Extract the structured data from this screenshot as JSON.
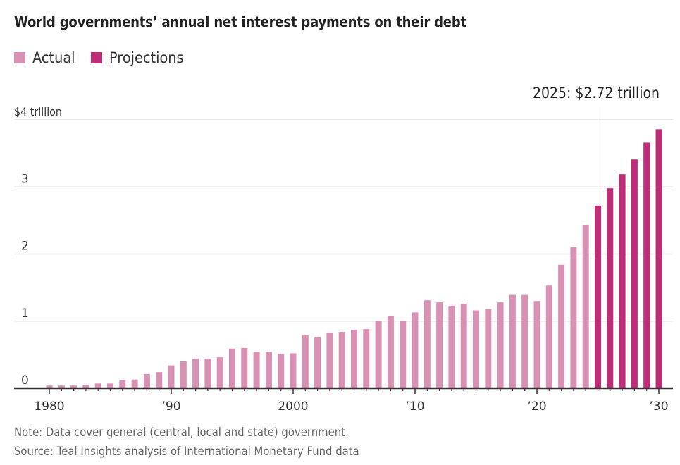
{
  "chart_data": {
    "type": "bar",
    "title": "World governments’ annual net interest payments on their debt",
    "xlabel": "",
    "ylabel": "",
    "ylim": [
      0,
      4
    ],
    "xlim": [
      1980,
      2030
    ],
    "grid": true,
    "legend_position": "top-left",
    "legend": [
      {
        "name": "Actual",
        "color": "#d991b3"
      },
      {
        "name": "Projections",
        "color": "#bf2c78"
      }
    ],
    "y_ticks": [
      {
        "value": 0,
        "label": "0"
      },
      {
        "value": 1,
        "label": "1"
      },
      {
        "value": 2,
        "label": "2"
      },
      {
        "value": 3,
        "label": "3"
      },
      {
        "value": 4,
        "label": "$4 trillion"
      }
    ],
    "x_ticks": [
      {
        "value": 1980,
        "label": "1980"
      },
      {
        "value": 1990,
        "label": "’90"
      },
      {
        "value": 2000,
        "label": "2000"
      },
      {
        "value": 2010,
        "label": "’10"
      },
      {
        "value": 2020,
        "label": "’20"
      },
      {
        "value": 2030,
        "label": "’30"
      }
    ],
    "series": [
      {
        "name": "Actual",
        "color": "#d991b3",
        "x": [
          1980,
          1981,
          1982,
          1983,
          1984,
          1985,
          1986,
          1987,
          1988,
          1989,
          1990,
          1991,
          1992,
          1993,
          1994,
          1995,
          1996,
          1997,
          1998,
          1999,
          2000,
          2001,
          2002,
          2003,
          2004,
          2005,
          2006,
          2007,
          2008,
          2009,
          2010,
          2011,
          2012,
          2013,
          2014,
          2015,
          2016,
          2017,
          2018,
          2019,
          2020,
          2021,
          2022,
          2023,
          2024
        ],
        "values": [
          0.04,
          0.04,
          0.04,
          0.05,
          0.07,
          0.07,
          0.12,
          0.13,
          0.21,
          0.24,
          0.34,
          0.4,
          0.44,
          0.44,
          0.46,
          0.59,
          0.6,
          0.54,
          0.54,
          0.51,
          0.52,
          0.79,
          0.76,
          0.83,
          0.84,
          0.87,
          0.88,
          1.0,
          1.08,
          1.0,
          1.13,
          1.31,
          1.28,
          1.23,
          1.26,
          1.16,
          1.18,
          1.28,
          1.39,
          1.39,
          1.3,
          1.53,
          1.84,
          2.1,
          2.43
        ]
      },
      {
        "name": "Projections",
        "color": "#bf2c78",
        "x": [
          2025,
          2026,
          2027,
          2028,
          2029,
          2030
        ],
        "values": [
          2.72,
          2.98,
          3.19,
          3.41,
          3.66,
          3.86
        ]
      }
    ],
    "annotations": [
      {
        "x": 2025,
        "y": 2.72,
        "text": "2025: $2.72 trillion"
      }
    ]
  },
  "footer": {
    "note": "Note: Data cover general (central, local and state) government.",
    "source": "Source: Teal Insights analysis of International Monetary Fund data"
  },
  "colors": {
    "grid": "#e2e2e2",
    "axis": "#333333",
    "text": "#333333"
  }
}
